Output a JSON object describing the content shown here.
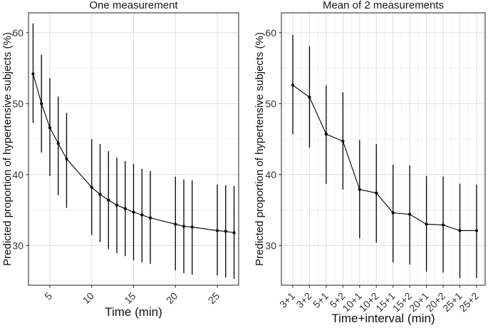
{
  "figure": {
    "background": "#ffffff",
    "colors": {
      "panel_background": "#ffffff",
      "panel_border": "#454545",
      "grid_major": "#dedede",
      "grid_minor": "#efefef",
      "tick_mark": "#333333",
      "tick_label": "#333333",
      "data": "#000000",
      "text": "#111111"
    }
  },
  "chart_data": [
    {
      "type": "pointrange-line",
      "title": "One measurement",
      "xlabel": "Time (min)",
      "ylabel": "Predicted proportion of hypertensive subjects (%)",
      "x": [
        3,
        4,
        5,
        6,
        7,
        10,
        11,
        12,
        13,
        14,
        15,
        16,
        17,
        20,
        21,
        22,
        25,
        26,
        27
      ],
      "series": [
        {
          "name": "estimate",
          "values": [
            54.2,
            50.0,
            46.6,
            44.4,
            42.2,
            38.2,
            37.2,
            36.4,
            35.7,
            35.2,
            34.7,
            34.3,
            33.9,
            33.0,
            32.7,
            32.6,
            32.1,
            32.0,
            31.8
          ]
        },
        {
          "name": "ci_low",
          "values": [
            47.3,
            43.1,
            39.8,
            37.1,
            35.3,
            31.5,
            30.5,
            29.5,
            28.9,
            28.5,
            27.9,
            27.6,
            27.4,
            26.5,
            26.1,
            25.9,
            25.8,
            25.5,
            25.3
          ]
        },
        {
          "name": "ci_high",
          "values": [
            61.3,
            56.9,
            53.6,
            51.0,
            48.7,
            45.0,
            44.3,
            43.3,
            42.4,
            41.9,
            41.5,
            40.8,
            40.5,
            39.7,
            39.3,
            39.2,
            38.6,
            38.5,
            38.4
          ]
        }
      ],
      "x_tick_values": [
        5,
        10,
        15,
        20,
        25
      ],
      "x_tick_labels": [
        "5",
        "10",
        "15",
        "20",
        "25"
      ],
      "y_tick_values": [
        30,
        40,
        50,
        60
      ],
      "y_tick_labels": [
        "30",
        "40",
        "50",
        "60"
      ],
      "y_minor_values": [
        25,
        35,
        45,
        55
      ],
      "xlim": [
        2.45,
        27.55
      ],
      "ylim": [
        24.4,
        62.8
      ],
      "grid": "major-and-minor-horizontal, major-vertical-only",
      "legend": "none"
    },
    {
      "type": "pointrange-line",
      "title": "Mean of 2 measurements",
      "xlabel": "Time+interval (min)",
      "ylabel": "Predicted proportion of hypertensive subjects (%)",
      "categories": [
        "3+1",
        "3+2",
        "5+1",
        "5+2",
        "10+1",
        "10+2",
        "15+1",
        "15+2",
        "20+1",
        "20+2",
        "25+1",
        "25+2"
      ],
      "series": [
        {
          "name": "estimate",
          "values": [
            52.6,
            50.9,
            45.7,
            44.7,
            37.9,
            37.4,
            34.6,
            34.4,
            33.0,
            32.9,
            32.1,
            32.1
          ]
        },
        {
          "name": "ci_low",
          "values": [
            45.7,
            43.8,
            38.7,
            37.9,
            31.0,
            30.4,
            27.6,
            27.3,
            26.3,
            26.2,
            25.4,
            25.4
          ]
        },
        {
          "name": "ci_high",
          "values": [
            59.7,
            58.1,
            52.6,
            51.6,
            44.9,
            44.3,
            41.4,
            41.3,
            39.8,
            39.7,
            38.7,
            38.6
          ]
        }
      ],
      "y_tick_values": [
        30,
        40,
        50,
        60
      ],
      "y_tick_labels": [
        "30",
        "40",
        "50",
        "60"
      ],
      "y_minor_values": [
        25,
        35,
        45,
        55
      ],
      "ylim": [
        24.4,
        62.8
      ],
      "grid": "major-and-minor-horizontal, major-and-minor-vertical",
      "legend": "none"
    }
  ]
}
